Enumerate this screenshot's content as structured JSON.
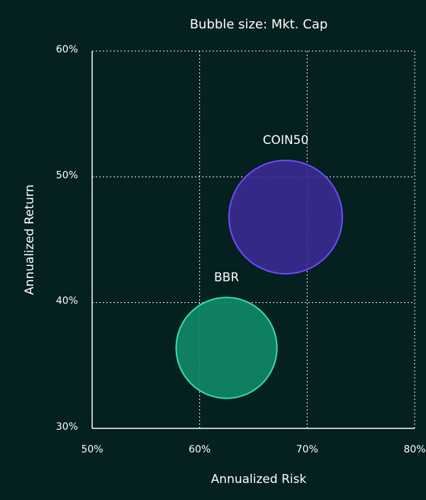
{
  "chart_data": {
    "type": "bubble",
    "title": "Bubble size: Mkt. Cap",
    "x_label": "Annualized Risk",
    "y_label": "Annualized Return",
    "series": [
      {
        "name": "COIN50",
        "color": "#3b2a92",
        "stroke": "#6c4dff",
        "x": [
          68.0
        ],
        "values": [
          46.8
        ],
        "sizes": [
          100
        ]
      },
      {
        "name": "BBR",
        "color": "#0f8a68",
        "stroke": "#36e2ab",
        "x": [
          62.5
        ],
        "values": [
          36.4
        ],
        "sizes": [
          79
        ]
      }
    ],
    "xlim": [
      50,
      80
    ],
    "xticks": [
      {
        "value": 50,
        "label": "50%"
      },
      {
        "value": 60,
        "label": "60%"
      },
      {
        "value": 70,
        "label": "70%"
      },
      {
        "value": 80,
        "label": "80%"
      }
    ],
    "ylim": [
      30,
      60
    ],
    "yticks": [
      {
        "value": 30,
        "label": "30%"
      },
      {
        "value": 40,
        "label": "40%"
      },
      {
        "value": 50,
        "label": "50%"
      },
      {
        "value": 60,
        "label": "60%"
      }
    ],
    "grid": true
  }
}
